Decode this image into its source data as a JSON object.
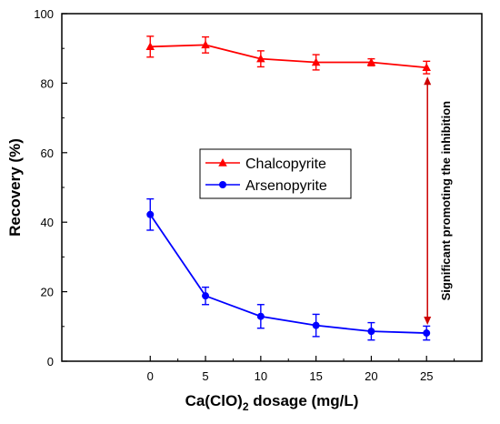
{
  "chart_data": {
    "type": "line",
    "xlabel_main": "Ca(ClO)",
    "xlabel_sub": "2",
    "xlabel_rest": " dosage (mg/L)",
    "ylabel": "Recovery (%)",
    "xlim": [
      -8,
      30
    ],
    "ylim": [
      0,
      100
    ],
    "xticks": [
      0,
      5,
      10,
      15,
      20,
      25
    ],
    "yticks": [
      0,
      20,
      40,
      60,
      80,
      100
    ],
    "grid": false,
    "legend_position": "center",
    "series": [
      {
        "name": "Chalcopyrite",
        "color": "#ff0000",
        "marker": "triangle",
        "x": [
          0,
          5,
          10,
          15,
          20,
          25
        ],
        "y": [
          90.5,
          91,
          87,
          86,
          86,
          84.5
        ],
        "err": [
          3,
          2.3,
          2.3,
          2.2,
          1.0,
          1.8
        ]
      },
      {
        "name": "Arsenopyrite",
        "color": "#0000ff",
        "marker": "circle",
        "x": [
          0,
          5,
          10,
          15,
          20,
          25
        ],
        "y": [
          42.2,
          18.8,
          12.9,
          10.3,
          8.6,
          8.1
        ],
        "err": [
          4.5,
          2.5,
          3.4,
          3.2,
          2.5,
          2.0
        ]
      }
    ],
    "annotation": {
      "text": "Significant promoting the inhibition",
      "x": 25,
      "y_from": 84.5,
      "y_to": 8.1,
      "color": "#cc0000"
    }
  }
}
